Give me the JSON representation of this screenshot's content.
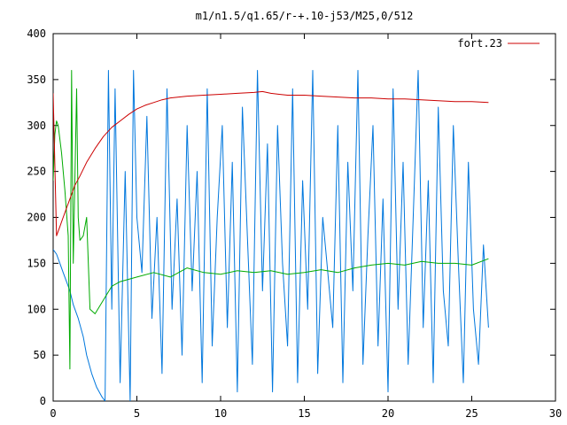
{
  "chart_data": {
    "type": "line",
    "title": "m1/n1.5/q1.65/r-+.10-j53/M25,0/512",
    "xlabel": "",
    "ylabel": "",
    "xlim": [
      0,
      30
    ],
    "ylim": [
      0,
      400
    ],
    "x_ticks": [
      0,
      5,
      10,
      15,
      20,
      25,
      30
    ],
    "y_ticks": [
      0,
      50,
      100,
      150,
      200,
      250,
      300,
      350,
      400
    ],
    "grid": false,
    "legend_position": "top-right",
    "series": [
      {
        "name": "fort.23",
        "color": "#cc0000",
        "x": [
          0.0,
          0.2,
          0.4,
          0.6,
          0.8,
          1.0,
          1.3,
          1.6,
          2.0,
          2.5,
          3.0,
          3.5,
          4.0,
          4.5,
          5.0,
          5.5,
          6.0,
          6.5,
          7.0,
          8.0,
          9.0,
          10.0,
          11.0,
          12.0,
          12.5,
          13.0,
          13.5,
          14.0,
          15.0,
          16.0,
          17.0,
          18.0,
          19.0,
          20.0,
          21.0,
          22.0,
          23.0,
          24.0,
          25.0,
          26.0
        ],
        "y": [
          335,
          180,
          190,
          200,
          210,
          220,
          235,
          245,
          260,
          275,
          288,
          298,
          305,
          312,
          318,
          322,
          325,
          328,
          330,
          332,
          333,
          334,
          335,
          336,
          337,
          335,
          334,
          333,
          333,
          332,
          331,
          330,
          330,
          329,
          329,
          328,
          327,
          326,
          326,
          325
        ]
      },
      {
        "color": "#00aa00",
        "x": [
          0.0,
          0.1,
          0.2,
          0.3,
          0.5,
          0.7,
          0.9,
          1.0,
          1.1,
          1.2,
          1.4,
          1.5,
          1.6,
          1.8,
          2.0,
          2.2,
          2.5,
          3.0,
          3.5,
          4.0,
          5.0,
          6.0,
          7.0,
          8.0,
          9.0,
          10.0,
          11.0,
          12.0,
          13.0,
          14.0,
          15.0,
          16.0,
          17.0,
          18.0,
          19.0,
          20.0,
          21.0,
          22.0,
          23.0,
          24.0,
          25.0,
          26.0
        ],
        "y": [
          240,
          290,
          305,
          300,
          270,
          230,
          180,
          35,
          360,
          150,
          340,
          200,
          175,
          180,
          200,
          100,
          95,
          110,
          125,
          130,
          135,
          140,
          135,
          145,
          140,
          138,
          142,
          140,
          142,
          138,
          140,
          143,
          140,
          145,
          148,
          150,
          148,
          152,
          150,
          150,
          148,
          155
        ]
      },
      {
        "color": "#0077dd",
        "x": [
          0.0,
          0.2,
          0.4,
          0.6,
          0.8,
          1.0,
          1.2,
          1.5,
          1.8,
          2.0,
          2.3,
          2.6,
          2.9,
          3.1,
          3.3,
          3.5,
          3.7,
          4.0,
          4.3,
          4.6,
          4.8,
          5.0,
          5.3,
          5.6,
          5.9,
          6.2,
          6.5,
          6.8,
          7.1,
          7.4,
          7.7,
          8.0,
          8.3,
          8.6,
          8.9,
          9.2,
          9.5,
          9.8,
          10.1,
          10.4,
          10.7,
          11.0,
          11.3,
          11.6,
          11.9,
          12.2,
          12.5,
          12.8,
          13.1,
          13.4,
          13.7,
          14.0,
          14.3,
          14.6,
          14.9,
          15.2,
          15.5,
          15.8,
          16.1,
          16.4,
          16.7,
          17.0,
          17.3,
          17.6,
          17.9,
          18.2,
          18.5,
          18.8,
          19.1,
          19.4,
          19.7,
          20.0,
          20.3,
          20.6,
          20.9,
          21.2,
          21.5,
          21.8,
          22.1,
          22.4,
          22.7,
          23.0,
          23.3,
          23.6,
          23.9,
          24.2,
          24.5,
          24.8,
          25.1,
          25.4,
          25.7,
          26.0
        ],
        "y": [
          165,
          160,
          150,
          140,
          130,
          120,
          105,
          90,
          70,
          50,
          30,
          15,
          5,
          0,
          360,
          100,
          340,
          20,
          250,
          0,
          360,
          200,
          140,
          310,
          90,
          200,
          30,
          340,
          100,
          220,
          50,
          300,
          120,
          250,
          20,
          340,
          60,
          200,
          300,
          80,
          260,
          10,
          320,
          180,
          40,
          360,
          120,
          280,
          10,
          300,
          150,
          60,
          340,
          20,
          240,
          100,
          360,
          30,
          200,
          140,
          80,
          300,
          20,
          260,
          120,
          360,
          40,
          180,
          300,
          60,
          220,
          10,
          340,
          100,
          260,
          40,
          200,
          360,
          80,
          240,
          20,
          320,
          120,
          60,
          300,
          150,
          20,
          260,
          100,
          40,
          170,
          80
        ]
      }
    ]
  }
}
